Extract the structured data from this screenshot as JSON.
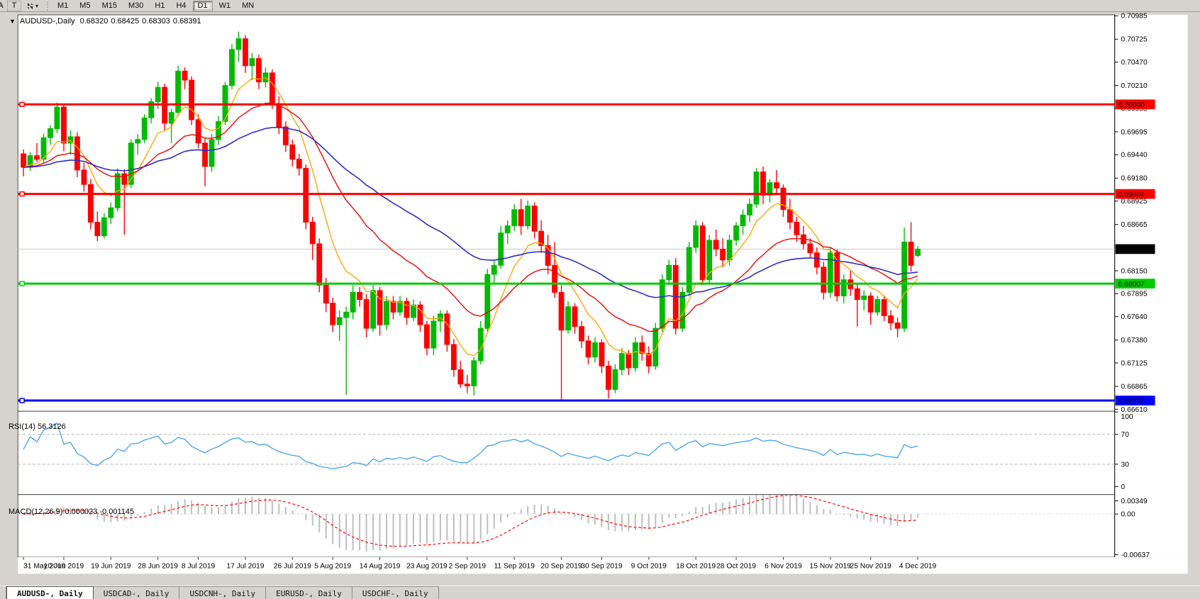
{
  "toolbar": {
    "clipped_letter": "A",
    "text_tool_label": "T",
    "arrange_icon": "arrange-symbols-icon",
    "dropdown_caret": "▾",
    "timeframes": [
      "M1",
      "M5",
      "M15",
      "M30",
      "H1",
      "H4",
      "D1",
      "W1",
      "MN"
    ],
    "active_timeframe": "D1"
  },
  "chart": {
    "symbol": "AUDUSD-,Daily",
    "open": "0.68320",
    "high": "0.68425",
    "low": "0.68303",
    "close": "0.68391",
    "collapse_triangle": "▼"
  },
  "indicator_labels": {
    "rsi": "RSI(14) 56.3126",
    "macd": "MACD(12,26,9) 0.000023 -0.001145"
  },
  "tabs": [
    "AUDUSD-, Daily",
    "USDCAD-, Daily",
    "USDCNH-, Daily",
    "EURUSD-, Daily",
    "USDCHF-, Daily"
  ],
  "chart_data": {
    "type": "candlestick",
    "title": "AUDUSD-,Daily",
    "colors": {
      "up": "#00BA00",
      "down": "#FF0000",
      "ma_fast": "#FFA600",
      "ma_mid": "#F00000",
      "ma_slow": "#2A2AC8",
      "rsi_line": "#4DA6E8",
      "macd_bar": "#BDBDBD",
      "macd_signal": "#FF0000",
      "last_price_line": "#C8C8C8",
      "last_price_box": "#000000"
    },
    "price_axis_ticks": [
      0.70985,
      0.70725,
      0.7047,
      0.7021,
      0.69955,
      0.69695,
      0.6944,
      0.6918,
      0.68925,
      0.68665,
      0.6815,
      0.67895,
      0.6764,
      0.6738,
      0.67125,
      0.66865,
      0.6661
    ],
    "hlines": [
      {
        "value": 0.7,
        "label": "0.70000",
        "color": "#FF0000",
        "text_color": "#FFFFFF"
      },
      {
        "value": 0.69004,
        "label": "0.69004",
        "color": "#FF0000",
        "text_color": "#FFFFFF"
      },
      {
        "value": 0.68007,
        "label": "0.68007",
        "color": "#00CC00",
        "text_color": "#000000"
      },
      {
        "value": 0.66707,
        "label": "0.66707",
        "color": "#0000FF",
        "text_color": "#FFFFFF"
      }
    ],
    "last_price": {
      "value": 0.68391,
      "label": "0.68391"
    },
    "moving_averages": [
      {
        "name": "fast",
        "period": 8,
        "color_key": "ma_fast"
      },
      {
        "name": "mid",
        "period": 22,
        "color_key": "ma_mid"
      },
      {
        "name": "slow",
        "period": 50,
        "color_key": "ma_slow"
      }
    ],
    "rsi": {
      "period": 14,
      "current": 56.3126,
      "levels": [
        70,
        30
      ],
      "axis_labels": [
        100,
        70,
        30,
        0
      ]
    },
    "macd": {
      "fast": 12,
      "slow": 26,
      "signal": 9,
      "main_current": 2.3e-05,
      "signal_current": -0.001145,
      "axis_labels": [
        0.00349,
        0.0,
        -0.00637
      ]
    },
    "time_labels": [
      [
        "31 May 2019",
        0
      ],
      [
        "10 Jun 2019",
        6
      ],
      [
        "19 Jun 2019",
        13
      ],
      [
        "28 Jun 2019",
        20
      ],
      [
        "8 Jul 2019",
        26
      ],
      [
        "17 Jul 2019",
        33
      ],
      [
        "26 Jul 2019",
        40
      ],
      [
        "5 Aug 2019",
        46
      ],
      [
        "14 Aug 2019",
        53
      ],
      [
        "23 Aug 2019",
        60
      ],
      [
        "2 Sep 2019",
        66
      ],
      [
        "11 Sep 2019",
        73
      ],
      [
        "20 Sep 2019",
        80
      ],
      [
        "30 Sep 2019",
        86
      ],
      [
        "9 Oct 2019",
        93
      ],
      [
        "18 Oct 2019",
        100
      ],
      [
        "28 Oct 2019",
        106
      ],
      [
        "6 Nov 2019",
        113
      ],
      [
        "15 Nov 2019",
        120
      ],
      [
        "25 Nov 2019",
        126
      ],
      [
        "4 Dec 2019",
        133
      ]
    ],
    "candles_ohlc": [
      [
        0.6945,
        0.695,
        0.692,
        0.693
      ],
      [
        0.693,
        0.6947,
        0.6926,
        0.6943
      ],
      [
        0.6943,
        0.6957,
        0.6936,
        0.6939
      ],
      [
        0.6939,
        0.6967,
        0.6935,
        0.6963
      ],
      [
        0.6963,
        0.6977,
        0.6955,
        0.6973
      ],
      [
        0.6973,
        0.7002,
        0.6968,
        0.6997
      ],
      [
        0.6997,
        0.7,
        0.6948,
        0.6957
      ],
      [
        0.6957,
        0.6971,
        0.6944,
        0.6964
      ],
      [
        0.6964,
        0.6969,
        0.6919,
        0.6927
      ],
      [
        0.6927,
        0.6935,
        0.6903,
        0.6911
      ],
      [
        0.6911,
        0.6917,
        0.6861,
        0.6869
      ],
      [
        0.6869,
        0.6881,
        0.6848,
        0.6854
      ],
      [
        0.6854,
        0.6879,
        0.6851,
        0.6874
      ],
      [
        0.6874,
        0.6891,
        0.6867,
        0.6885
      ],
      [
        0.6885,
        0.6929,
        0.6881,
        0.6923
      ],
      [
        0.6923,
        0.6928,
        0.6855,
        0.6911
      ],
      [
        0.6911,
        0.6961,
        0.6907,
        0.6957
      ],
      [
        0.6957,
        0.6967,
        0.6944,
        0.6961
      ],
      [
        0.6961,
        0.6989,
        0.6957,
        0.6985
      ],
      [
        0.6985,
        0.7007,
        0.6979,
        0.7003
      ],
      [
        0.7003,
        0.7025,
        0.6995,
        0.7019
      ],
      [
        0.7019,
        0.7023,
        0.6971,
        0.6979
      ],
      [
        0.6979,
        0.6995,
        0.6957,
        0.6991
      ],
      [
        0.6991,
        0.7043,
        0.6987,
        0.7037
      ],
      [
        0.7037,
        0.7041,
        0.7017,
        0.7027
      ],
      [
        0.7027,
        0.7031,
        0.6977,
        0.6983
      ],
      [
        0.6983,
        0.6989,
        0.6951,
        0.6957
      ],
      [
        0.6957,
        0.6963,
        0.6909,
        0.6931
      ],
      [
        0.6931,
        0.6967,
        0.6925,
        0.6961
      ],
      [
        0.6961,
        0.6987,
        0.6955,
        0.6981
      ],
      [
        0.6981,
        0.7025,
        0.6977,
        0.7021
      ],
      [
        0.7021,
        0.7067,
        0.7017,
        0.7061
      ],
      [
        0.7061,
        0.7081,
        0.7047,
        0.7073
      ],
      [
        0.7073,
        0.7077,
        0.7035,
        0.7043
      ],
      [
        0.7043,
        0.7057,
        0.7027,
        0.7051
      ],
      [
        0.7051,
        0.7055,
        0.7017,
        0.7025
      ],
      [
        0.7025,
        0.7041,
        0.7019,
        0.7035
      ],
      [
        0.7035,
        0.7039,
        0.6995,
        0.7001
      ],
      [
        0.7001,
        0.7009,
        0.6967,
        0.6975
      ],
      [
        0.6975,
        0.6981,
        0.6947,
        0.6955
      ],
      [
        0.6955,
        0.6961,
        0.6931,
        0.6939
      ],
      [
        0.6939,
        0.6945,
        0.6921,
        0.6929
      ],
      [
        0.6929,
        0.6933,
        0.6861,
        0.6869
      ],
      [
        0.6869,
        0.6875,
        0.6827,
        0.6845
      ],
      [
        0.6845,
        0.6851,
        0.6791,
        0.6799
      ],
      [
        0.6799,
        0.6807,
        0.6769,
        0.6779
      ],
      [
        0.6779,
        0.6785,
        0.6747,
        0.6755
      ],
      [
        0.6755,
        0.6771,
        0.6737,
        0.6763
      ],
      [
        0.6763,
        0.6775,
        0.6677,
        0.6769
      ],
      [
        0.6769,
        0.6799,
        0.6761,
        0.6791
      ],
      [
        0.6791,
        0.6797,
        0.6775,
        0.6783
      ],
      [
        0.6783,
        0.6789,
        0.6741,
        0.6751
      ],
      [
        0.6751,
        0.6799,
        0.6747,
        0.6793
      ],
      [
        0.6793,
        0.6797,
        0.6743,
        0.6755
      ],
      [
        0.6755,
        0.6787,
        0.6749,
        0.6781
      ],
      [
        0.6781,
        0.6787,
        0.6761,
        0.6769
      ],
      [
        0.6769,
        0.6787,
        0.6765,
        0.6781
      ],
      [
        0.6781,
        0.6785,
        0.6755,
        0.6763
      ],
      [
        0.6763,
        0.6783,
        0.6759,
        0.6777
      ],
      [
        0.6777,
        0.6781,
        0.6747,
        0.6755
      ],
      [
        0.6755,
        0.6759,
        0.6721,
        0.6729
      ],
      [
        0.6729,
        0.6765,
        0.6721,
        0.6759
      ],
      [
        0.6759,
        0.6771,
        0.6747,
        0.6767
      ],
      [
        0.6767,
        0.6771,
        0.6725,
        0.6733
      ],
      [
        0.6733,
        0.6739,
        0.6697,
        0.6705
      ],
      [
        0.6705,
        0.6715,
        0.6685,
        0.6689
      ],
      [
        0.6689,
        0.6699,
        0.6679,
        0.6687
      ],
      [
        0.6687,
        0.6719,
        0.6676,
        0.6715
      ],
      [
        0.6715,
        0.6759,
        0.6711,
        0.6751
      ],
      [
        0.6751,
        0.6817,
        0.6747,
        0.6811
      ],
      [
        0.6811,
        0.6827,
        0.6801,
        0.6821
      ],
      [
        0.6821,
        0.6865,
        0.6817,
        0.6857
      ],
      [
        0.6857,
        0.6871,
        0.6845,
        0.6865
      ],
      [
        0.6865,
        0.6889,
        0.6859,
        0.6883
      ],
      [
        0.6883,
        0.6895,
        0.6855,
        0.6865
      ],
      [
        0.6865,
        0.6893,
        0.6861,
        0.6887
      ],
      [
        0.6887,
        0.6891,
        0.6851,
        0.6859
      ],
      [
        0.6859,
        0.6871,
        0.6835,
        0.6843
      ],
      [
        0.6843,
        0.6855,
        0.6811,
        0.6821
      ],
      [
        0.6821,
        0.6847,
        0.6785,
        0.6791
      ],
      [
        0.6791,
        0.6799,
        0.6671,
        0.6749
      ],
      [
        0.6749,
        0.6781,
        0.6745,
        0.6775
      ],
      [
        0.6775,
        0.6779,
        0.6745,
        0.6753
      ],
      [
        0.6753,
        0.6759,
        0.6729,
        0.6737
      ],
      [
        0.6737,
        0.6743,
        0.6711,
        0.6719
      ],
      [
        0.6719,
        0.6741,
        0.6713,
        0.6735
      ],
      [
        0.6735,
        0.6739,
        0.6701,
        0.6709
      ],
      [
        0.6709,
        0.6715,
        0.6673,
        0.6683
      ],
      [
        0.6683,
        0.6711,
        0.6679,
        0.6705
      ],
      [
        0.6705,
        0.6729,
        0.6699,
        0.6723
      ],
      [
        0.6723,
        0.6727,
        0.6699,
        0.6707
      ],
      [
        0.6707,
        0.6741,
        0.6703,
        0.6735
      ],
      [
        0.6735,
        0.6743,
        0.6715,
        0.6723
      ],
      [
        0.6723,
        0.6731,
        0.6701,
        0.6709
      ],
      [
        0.6709,
        0.6757,
        0.6705,
        0.6751
      ],
      [
        0.6751,
        0.6811,
        0.6747,
        0.6805
      ],
      [
        0.6805,
        0.6827,
        0.6799,
        0.6821
      ],
      [
        0.6821,
        0.6829,
        0.6744,
        0.6751
      ],
      [
        0.6751,
        0.6797,
        0.6747,
        0.6791
      ],
      [
        0.6791,
        0.6847,
        0.6787,
        0.6841
      ],
      [
        0.6841,
        0.6871,
        0.6835,
        0.6865
      ],
      [
        0.6865,
        0.6869,
        0.6799,
        0.6805
      ],
      [
        0.6805,
        0.6855,
        0.68,
        0.6849
      ],
      [
        0.6849,
        0.6861,
        0.6831,
        0.6839
      ],
      [
        0.6839,
        0.6851,
        0.6819,
        0.6827
      ],
      [
        0.6827,
        0.6855,
        0.6821,
        0.6849
      ],
      [
        0.6849,
        0.6869,
        0.6843,
        0.6865
      ],
      [
        0.6865,
        0.6883,
        0.6855,
        0.6877
      ],
      [
        0.6877,
        0.6895,
        0.6869,
        0.6889
      ],
      [
        0.6889,
        0.6929,
        0.6885,
        0.6925
      ],
      [
        0.6925,
        0.6931,
        0.6889,
        0.6899
      ],
      [
        0.6899,
        0.6917,
        0.6891,
        0.6913
      ],
      [
        0.6913,
        0.6927,
        0.6901,
        0.6907
      ],
      [
        0.6907,
        0.6911,
        0.6875,
        0.6883
      ],
      [
        0.6883,
        0.6895,
        0.6861,
        0.6869
      ],
      [
        0.6869,
        0.6875,
        0.6847,
        0.6855
      ],
      [
        0.6855,
        0.6865,
        0.6839,
        0.6845
      ],
      [
        0.6845,
        0.6851,
        0.6829,
        0.6835
      ],
      [
        0.6835,
        0.6841,
        0.6811,
        0.6819
      ],
      [
        0.6819,
        0.6825,
        0.6783,
        0.6791
      ],
      [
        0.6791,
        0.6841,
        0.6785,
        0.6835
      ],
      [
        0.6835,
        0.6839,
        0.6781,
        0.6787
      ],
      [
        0.6787,
        0.6811,
        0.6779,
        0.6805
      ],
      [
        0.6805,
        0.6815,
        0.6787,
        0.6795
      ],
      [
        0.6795,
        0.6801,
        0.6753,
        0.6783
      ],
      [
        0.6783,
        0.6793,
        0.6771,
        0.6787
      ],
      [
        0.6787,
        0.6791,
        0.6755,
        0.6769
      ],
      [
        0.6769,
        0.6787,
        0.6765,
        0.6783
      ],
      [
        0.6783,
        0.6787,
        0.6759,
        0.6765
      ],
      [
        0.6765,
        0.6771,
        0.6749,
        0.6757
      ],
      [
        0.6757,
        0.6763,
        0.6741,
        0.6751
      ],
      [
        0.6751,
        0.6863,
        0.6747,
        0.6847
      ],
      [
        0.6847,
        0.6869,
        0.6814,
        0.6821
      ],
      [
        0.6832,
        0.68425,
        0.68303,
        0.68391
      ]
    ]
  }
}
